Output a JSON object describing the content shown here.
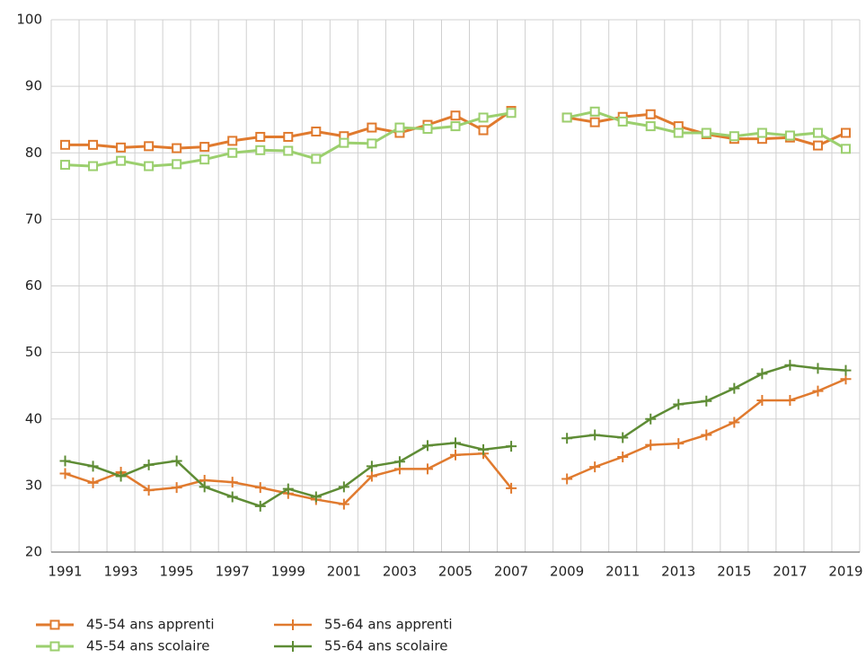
{
  "chart_data": {
    "type": "line",
    "categories": [
      "1991",
      null,
      "1993",
      null,
      "1995",
      null,
      "1997",
      null,
      "1999",
      null,
      "2001",
      null,
      "2003",
      null,
      "2005",
      null,
      "2007",
      null,
      "2009",
      null,
      "2011",
      null,
      "2013",
      null,
      "2015",
      null,
      "2017",
      null,
      "2019"
    ],
    "series": [
      {
        "name": "45-54 ans apprenti",
        "color": "#e07a2e",
        "marker": "square",
        "values": [
          81.2,
          81.2,
          80.8,
          81.0,
          80.7,
          80.9,
          81.8,
          82.4,
          82.4,
          83.2,
          82.5,
          83.8,
          83.0,
          84.2,
          85.6,
          83.4,
          86.3,
          null,
          85.3,
          84.6,
          85.4,
          85.8,
          84.0,
          82.8,
          82.1,
          82.1,
          82.3,
          81.1,
          83.0
        ]
      },
      {
        "name": "55-64 ans apprenti",
        "color": "#e07a2e",
        "marker": "plus",
        "values": [
          31.8,
          30.4,
          32.0,
          29.3,
          29.7,
          30.8,
          30.5,
          29.7,
          28.8,
          27.9,
          27.2,
          31.4,
          32.5,
          32.5,
          34.6,
          34.8,
          29.6,
          null,
          31.0,
          32.8,
          34.3,
          36.1,
          36.3,
          37.6,
          39.5,
          42.8,
          42.8,
          44.2,
          46.0
        ]
      },
      {
        "name": "45-54 ans scolaire",
        "color": "#9bcf6e",
        "marker": "square",
        "values": [
          78.2,
          78.0,
          78.8,
          78.0,
          78.3,
          79.0,
          80.0,
          80.4,
          80.3,
          79.1,
          81.5,
          81.4,
          83.8,
          83.6,
          84.0,
          85.3,
          86.0,
          null,
          85.3,
          86.2,
          84.7,
          84.0,
          83.0,
          83.0,
          82.5,
          83.0,
          82.6,
          83.0,
          80.6
        ]
      },
      {
        "name": "55-64 ans scolaire",
        "color": "#5e8c35",
        "marker": "plus",
        "values": [
          33.7,
          32.9,
          31.4,
          33.1,
          33.7,
          29.8,
          28.3,
          26.9,
          29.5,
          28.3,
          29.8,
          32.9,
          33.6,
          36.0,
          36.4,
          35.4,
          35.9,
          null,
          37.1,
          37.6,
          37.2,
          40.0,
          42.2,
          42.7,
          44.6,
          46.8,
          48.1,
          47.6,
          47.3
        ]
      }
    ],
    "ylim": [
      20,
      100
    ],
    "yticks": [
      20,
      30,
      40,
      50,
      60,
      70,
      80,
      90,
      100
    ],
    "grid": true
  }
}
